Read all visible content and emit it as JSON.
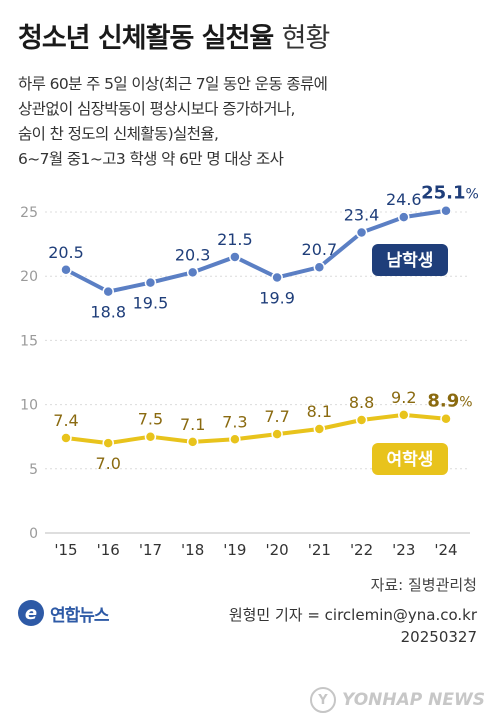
{
  "header": {
    "title_main": "청소년 신체활동 실천율",
    "title_sub": "현황",
    "description": [
      "하루 60분 주 5일 이상(최근 7일 동안 운동 종류에",
      "상관없이 심장박동이 평상시보다 증가하거나,",
      "숨이 찬 정도의 신체활동)실천율,",
      "6~7월 중1~고3 학생 약 6만 명 대상 조사"
    ]
  },
  "chart_data": {
    "type": "line",
    "categories": [
      "'15",
      "'16",
      "'17",
      "'18",
      "'19",
      "'20",
      "'21",
      "'22",
      "'23",
      "'24"
    ],
    "series": [
      {
        "name": "남학생",
        "values": [
          20.5,
          18.8,
          19.5,
          20.3,
          21.5,
          19.9,
          20.7,
          23.4,
          24.6,
          25.1
        ],
        "color": "#5b7fc4",
        "label_color": "#1f3e7a"
      },
      {
        "name": "여학생",
        "values": [
          7.4,
          7.0,
          7.5,
          7.1,
          7.3,
          7.7,
          8.1,
          8.8,
          9.2,
          8.9
        ],
        "color": "#e8c31c",
        "label_color": "#8a6a10"
      }
    ],
    "value_labels": {
      "남학생": [
        "20.5",
        "18.8",
        "19.5",
        "20.3",
        "21.5",
        "19.9",
        "20.7",
        "23.4",
        "24.6",
        "25.1"
      ],
      "여학생": [
        "7.4",
        "7.0",
        "7.5",
        "7.1",
        "7.3",
        "7.7",
        "8.1",
        "8.8",
        "9.2",
        "8.9"
      ]
    },
    "last_unit": "%",
    "ylim": [
      0,
      25
    ],
    "yticks": [
      0,
      5,
      10,
      15,
      20,
      25
    ],
    "grid": true,
    "legend": "inline-badges"
  },
  "footer": {
    "source": "자료: 질병관리청",
    "logo_text": "연합뉴스",
    "logo_mark": "e",
    "byline": "원형민 기자 = circlemin@yna.co.kr",
    "date": "20250327",
    "watermark": "YONHAP NEWS",
    "watermark_mark": "Y"
  }
}
